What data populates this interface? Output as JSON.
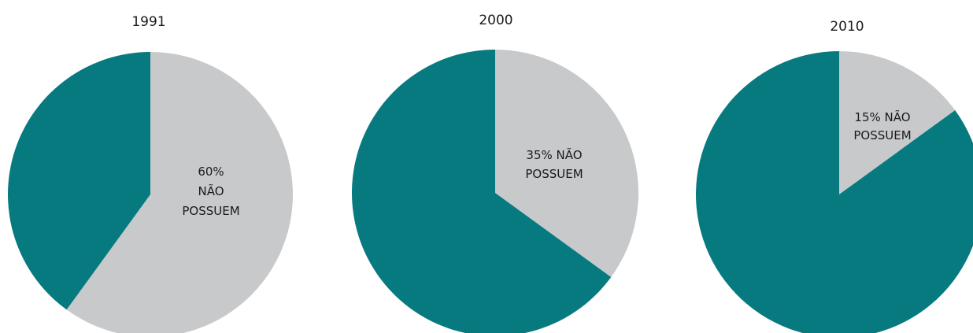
{
  "colors": {
    "possuem": "#077a80",
    "nao_possuem": "#c8c9cb",
    "text": "#1a1a1a"
  },
  "chart_data": [
    {
      "type": "pie",
      "title": "1991",
      "slices": [
        {
          "value": 60,
          "color": "#c8c9cb",
          "label_lines": [
            "60%",
            "NÃO",
            "POSSUEM"
          ]
        },
        {
          "value": 40,
          "color": "#077a80",
          "label_lines": []
        }
      ]
    },
    {
      "type": "pie",
      "title": "2000",
      "slices": [
        {
          "value": 35,
          "color": "#c8c9cb",
          "label_lines": [
            "35% NÃO",
            "POSSUEM"
          ]
        },
        {
          "value": 65,
          "color": "#077a80",
          "label_lines": []
        }
      ]
    },
    {
      "type": "pie",
      "title": "2010",
      "slices": [
        {
          "value": 15,
          "color": "#c8c9cb",
          "label_lines": [
            "15% NÃO",
            "POSSUEM"
          ]
        },
        {
          "value": 85,
          "color": "#077a80",
          "label_lines": []
        }
      ]
    }
  ]
}
